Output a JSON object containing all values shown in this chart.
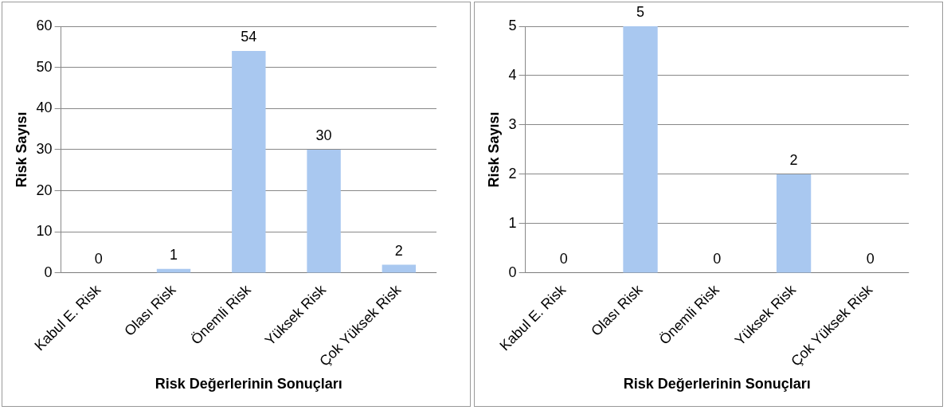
{
  "chart_data": [
    {
      "type": "bar",
      "categories": [
        "Kabul E. Risk",
        "Olası Risk",
        "Önemli Risk",
        "Yüksek Risk",
        "Çok Yüksek Risk"
      ],
      "values": [
        0,
        1,
        54,
        30,
        2
      ],
      "color": "#a9c8f0",
      "ylim": [
        0,
        60
      ],
      "yticks": [
        0,
        10,
        20,
        30,
        40,
        50,
        60
      ],
      "grid": "y",
      "data_labels": true,
      "xlabel": "Risk Değerlerinin Sonuçları",
      "ylabel": "Risk Sayısı"
    },
    {
      "type": "bar",
      "categories": [
        "Kabul E. Risk",
        "Olası Risk",
        "Önemli Risk",
        "Yüksek Risk",
        "Çok Yüksek Risk"
      ],
      "values": [
        0,
        5,
        0,
        2,
        0
      ],
      "color": "#a9c8f0",
      "ylim": [
        0,
        5
      ],
      "yticks": [
        0,
        1,
        2,
        3,
        4,
        5
      ],
      "grid": "y",
      "data_labels": true,
      "xlabel": "Risk Değerlerinin Sonuçları",
      "ylabel": "Risk Sayısı"
    }
  ]
}
